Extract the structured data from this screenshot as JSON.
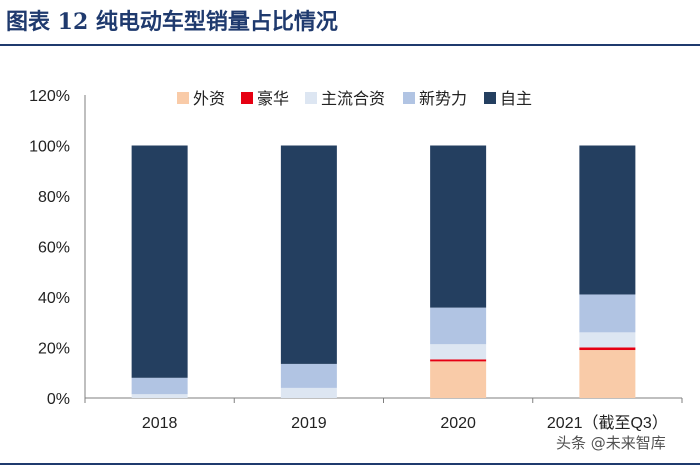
{
  "header": {
    "title": "图表 12  纯电动车型销量占比情况"
  },
  "watermark": {
    "text": "头条 @未来智库"
  },
  "colors": {
    "foreign": "#f9cba8",
    "luxury": "#e60012",
    "jv": "#dde6f2",
    "new_forces": "#b1c4e3",
    "domestic": "#243f60",
    "title": "#1f3a6e"
  },
  "chart_data": {
    "type": "bar",
    "stacked": true,
    "title": "纯电动车型销量占比情况",
    "xlabel": "",
    "ylabel": "",
    "ylim": [
      0,
      120
    ],
    "yticks": [
      "0%",
      "20%",
      "40%",
      "60%",
      "80%",
      "100%",
      "120%"
    ],
    "categories": [
      "2018",
      "2019",
      "2020",
      "2021（截至Q3）"
    ],
    "legend_position": "top",
    "series": [
      {
        "key": "foreign",
        "name": "外资",
        "values": [
          0,
          0,
          14.5,
          19
        ]
      },
      {
        "key": "luxury",
        "name": "豪华",
        "values": [
          0,
          0,
          0.8,
          1
        ]
      },
      {
        "key": "jv",
        "name": "主流合资",
        "values": [
          1.5,
          4,
          6,
          6
        ]
      },
      {
        "key": "new_forces",
        "name": "新势力",
        "values": [
          6.5,
          9.5,
          14.5,
          15
        ]
      },
      {
        "key": "domestic",
        "name": "自主",
        "values": [
          92,
          86.5,
          64.2,
          59
        ]
      }
    ]
  }
}
